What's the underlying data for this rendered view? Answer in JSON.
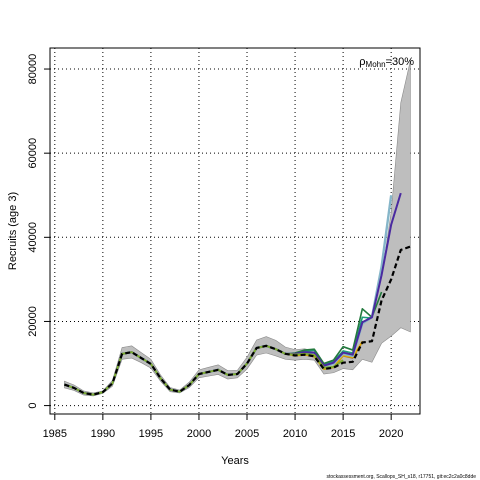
{
  "chart_data": {
    "type": "line",
    "xlabel": "Years",
    "ylabel": "Recruits (age 3)",
    "xlim": [
      1984.5,
      2023
    ],
    "ylim": [
      -2000,
      85000
    ],
    "xticks": [
      1985,
      1990,
      1995,
      2000,
      2005,
      2010,
      2015,
      2020
    ],
    "yticks": [
      0,
      20000,
      40000,
      60000,
      80000
    ],
    "grid": true,
    "annotation": {
      "prefix": "ρ",
      "subscript": "Mohn",
      "text": "=30%"
    },
    "footer": "stockassessment.org, Scallops_SH_s18, r17751, git:ec2c2a0c8dde",
    "ci_band": {
      "color": "#bebebe",
      "x": [
        1986,
        1987,
        1988,
        1989,
        1990,
        1991,
        1992,
        1993,
        1994,
        1995,
        1996,
        1997,
        1998,
        1999,
        2000,
        2001,
        2002,
        2003,
        2004,
        2005,
        2006,
        2007,
        2008,
        2009,
        2010,
        2011,
        2012,
        2013,
        2014,
        2015,
        2016,
        2017,
        2018,
        2019,
        2020,
        2021,
        2022
      ],
      "lower": [
        4200,
        3600,
        2500,
        2300,
        2900,
        4600,
        11000,
        11300,
        10200,
        8900,
        5800,
        3300,
        3000,
        4300,
        6600,
        7000,
        7400,
        6300,
        6600,
        8700,
        12000,
        12500,
        11800,
        11000,
        10800,
        11000,
        10800,
        7500,
        7800,
        8800,
        8500,
        11000,
        10300,
        14800,
        16500,
        18500,
        17500
      ],
      "upper": [
        5800,
        4900,
        3500,
        3000,
        3500,
        6000,
        13800,
        14200,
        12600,
        11000,
        7300,
        4300,
        3700,
        5600,
        8500,
        9100,
        9700,
        8300,
        8400,
        11500,
        15600,
        16400,
        15500,
        13900,
        13300,
        13500,
        13000,
        9900,
        10500,
        12000,
        12800,
        19500,
        21500,
        30500,
        46000,
        72000,
        82000
      ]
    },
    "series": [
      {
        "color": "#000000",
        "dashed": true,
        "width": 2.2,
        "x": [
          1986,
          1987,
          1988,
          1989,
          1990,
          1991,
          1992,
          1993,
          1994,
          1995,
          1996,
          1997,
          1998,
          1999,
          2000,
          2001,
          2002,
          2003,
          2004,
          2005,
          2006,
          2007,
          2008,
          2009,
          2010,
          2011,
          2012,
          2013,
          2014,
          2015,
          2016,
          2017,
          2018,
          2019,
          2020,
          2021,
          2022
        ],
        "y": [
          5000,
          4200,
          3000,
          2600,
          3200,
          5300,
          12300,
          12700,
          11300,
          9900,
          6500,
          3800,
          3300,
          4900,
          7500,
          8000,
          8500,
          7300,
          7500,
          10000,
          13700,
          14200,
          13400,
          12300,
          11900,
          12100,
          11700,
          8700,
          9000,
          10200,
          10400,
          15000,
          15300,
          25000,
          30000,
          37000,
          37800
        ]
      },
      {
        "color": "#a6761d",
        "width": 1.5,
        "x": [
          1986,
          1987,
          1988,
          1989,
          1990,
          1991,
          1992,
          1993,
          1994,
          1995,
          1996,
          1997,
          1998,
          1999,
          2000,
          2001,
          2002,
          2003,
          2004,
          2005,
          2006,
          2007,
          2008,
          2009,
          2010,
          2011,
          2012,
          2013,
          2014,
          2015,
          2016,
          2017
        ],
        "y": [
          4900,
          4150,
          2950,
          2550,
          3150,
          5250,
          12200,
          12650,
          11250,
          9850,
          6450,
          3780,
          3280,
          4870,
          7450,
          7950,
          8450,
          7260,
          7460,
          9950,
          13600,
          14100,
          13350,
          12250,
          11850,
          12050,
          11650,
          8650,
          9050,
          11800,
          11300,
          15100
        ]
      },
      {
        "color": "#e6ab02",
        "width": 1.5,
        "x": [
          1986,
          1987,
          1988,
          1989,
          1990,
          1991,
          1992,
          1993,
          1994,
          1995,
          1996,
          1997,
          1998,
          1999,
          2000,
          2001,
          2002,
          2003,
          2004,
          2005,
          2006,
          2007,
          2008,
          2009,
          2010,
          2011,
          2012,
          2013,
          2014,
          2015,
          2016,
          2017
        ],
        "y": [
          4950,
          4180,
          2980,
          2580,
          3180,
          5280,
          12250,
          12680,
          11280,
          9880,
          6480,
          3790,
          3290,
          4890,
          7480,
          7980,
          8480,
          7280,
          7480,
          9980,
          13650,
          14150,
          13380,
          12280,
          11880,
          12080,
          11680,
          8680,
          9100,
          11900,
          11500,
          15300
        ]
      },
      {
        "color": "#1b9e77",
        "width": 1.6,
        "x": [
          1986,
          1987,
          1988,
          1989,
          1990,
          1991,
          1992,
          1993,
          1994,
          1995,
          1996,
          1997,
          1998,
          1999,
          2000,
          2001,
          2002,
          2003,
          2004,
          2005,
          2006,
          2007,
          2008,
          2009,
          2010,
          2011,
          2012,
          2013,
          2014,
          2015,
          2016,
          2017,
          2018
        ],
        "y": [
          5000,
          4200,
          3000,
          2600,
          3200,
          5300,
          12300,
          12700,
          11300,
          9900,
          6500,
          3800,
          3300,
          4900,
          7500,
          8000,
          8500,
          7300,
          7500,
          10000,
          13700,
          14200,
          13400,
          12300,
          12300,
          12900,
          13200,
          9700,
          10500,
          13000,
          12500,
          21000,
          20800
        ]
      },
      {
        "color": "#237a3e",
        "width": 1.6,
        "x": [
          1986,
          1987,
          1988,
          1989,
          1990,
          1991,
          1992,
          1993,
          1994,
          1995,
          1996,
          1997,
          1998,
          1999,
          2000,
          2001,
          2002,
          2003,
          2004,
          2005,
          2006,
          2007,
          2008,
          2009,
          2010,
          2011,
          2012,
          2013,
          2014,
          2015,
          2016,
          2017,
          2018,
          2019
        ],
        "y": [
          5000,
          4200,
          3000,
          2600,
          3200,
          5300,
          12300,
          12700,
          11300,
          9900,
          6500,
          3800,
          3300,
          4900,
          7500,
          8000,
          8500,
          7300,
          7500,
          10000,
          13700,
          14200,
          13400,
          12300,
          12500,
          13200,
          13400,
          10000,
          10800,
          14000,
          13200,
          23000,
          21000,
          27000
        ]
      },
      {
        "color": "#86b6c9",
        "width": 2.4,
        "x": [
          1986,
          1987,
          1988,
          1989,
          1990,
          1991,
          1992,
          1993,
          1994,
          1995,
          1996,
          1997,
          1998,
          1999,
          2000,
          2001,
          2002,
          2003,
          2004,
          2005,
          2006,
          2007,
          2008,
          2009,
          2010,
          2011,
          2012,
          2013,
          2014,
          2015,
          2016,
          2017,
          2018,
          2019,
          2020
        ],
        "y": [
          5000,
          4200,
          3000,
          2600,
          3200,
          5300,
          12300,
          12700,
          11300,
          9900,
          6500,
          3800,
          3300,
          4900,
          7500,
          8000,
          8500,
          7300,
          7500,
          10000,
          13700,
          14200,
          13400,
          12300,
          12200,
          12600,
          12400,
          9300,
          10000,
          12300,
          11800,
          19500,
          21000,
          33000,
          50000
        ]
      },
      {
        "color": "#4a2aa0",
        "width": 2,
        "x": [
          1986,
          1987,
          1988,
          1989,
          1990,
          1991,
          1992,
          1993,
          1994,
          1995,
          1996,
          1997,
          1998,
          1999,
          2000,
          2001,
          2002,
          2003,
          2004,
          2005,
          2006,
          2007,
          2008,
          2009,
          2010,
          2011,
          2012,
          2013,
          2014,
          2015,
          2016,
          2017,
          2018,
          2019,
          2020,
          2021
        ],
        "y": [
          5000,
          4200,
          3000,
          2600,
          3200,
          5300,
          12300,
          12700,
          11300,
          9900,
          6500,
          3800,
          3300,
          4900,
          7500,
          8000,
          8500,
          7300,
          7500,
          10000,
          13700,
          14200,
          13400,
          12300,
          12300,
          12700,
          12600,
          9500,
          10200,
          12600,
          12100,
          19800,
          21000,
          31000,
          43000,
          50500
        ]
      },
      {
        "color": "#7fae32",
        "width": 2,
        "x": [
          1986,
          1987,
          1988,
          1989,
          1990,
          1991,
          1992,
          1993,
          1994,
          1995,
          1996,
          1997,
          1998,
          1999,
          2000,
          2001,
          2002,
          2003,
          2004,
          2005,
          2006,
          2007,
          2008,
          2009,
          2010,
          2011,
          2012,
          2013,
          2014,
          2015
        ],
        "y": [
          5000,
          4200,
          3000,
          2600,
          3200,
          5300,
          12300,
          12700,
          11300,
          9900,
          6500,
          3800,
          3300,
          4900,
          7500,
          8000,
          8500,
          7300,
          7500,
          10000,
          13700,
          14200,
          13400,
          12300,
          12100,
          12300,
          12000,
          9000,
          9200,
          10800
        ]
      }
    ]
  }
}
